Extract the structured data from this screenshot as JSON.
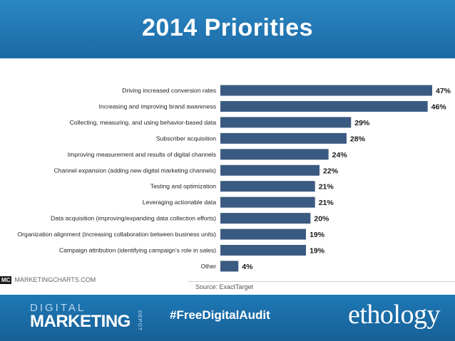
{
  "slide": {
    "title": "2014 Priorities",
    "hashtag": "#FreeDigitalAudit",
    "brand_logo_left": {
      "line1": "DIGITAL",
      "line2": "MARKETING",
      "side": "DEPOT"
    },
    "brand_logo_right": "ethology",
    "colors": {
      "header_blue": "#2a86c2",
      "bar": "#3b5a82",
      "footer_blue": "#1e79b6"
    }
  },
  "source": {
    "mc_badge": "MC",
    "mc_text": "MARKETINGCHARTS.COM",
    "citation": "Source: ExactTarget"
  },
  "chart_data": {
    "type": "bar",
    "orientation": "horizontal",
    "categories": [
      "Driving increased conversion rates",
      "Increasing and improving brand awareness",
      "Collecting, measuring, and using behavior-based data",
      "Subscriber acquisition",
      "Improving measurement and results of digital channels",
      "Channel expansion (adding new digital marketing channels)",
      "Testing and optimization",
      "Leveraging actionable data",
      "Data acquisition (improving/expanding data collection efforts)",
      "Organization alignment (increasing collaboration between business units)",
      "Campaign attribution (identifying campaign's role in sales)",
      "Other"
    ],
    "values": [
      47,
      46,
      29,
      28,
      24,
      22,
      21,
      21,
      20,
      19,
      19,
      4
    ],
    "value_labels": [
      "47%",
      "46%",
      "29%",
      "28%",
      "24%",
      "22%",
      "21%",
      "21%",
      "20%",
      "19%",
      "19%",
      "4%"
    ],
    "xlim": [
      0,
      47
    ],
    "grid": false
  }
}
